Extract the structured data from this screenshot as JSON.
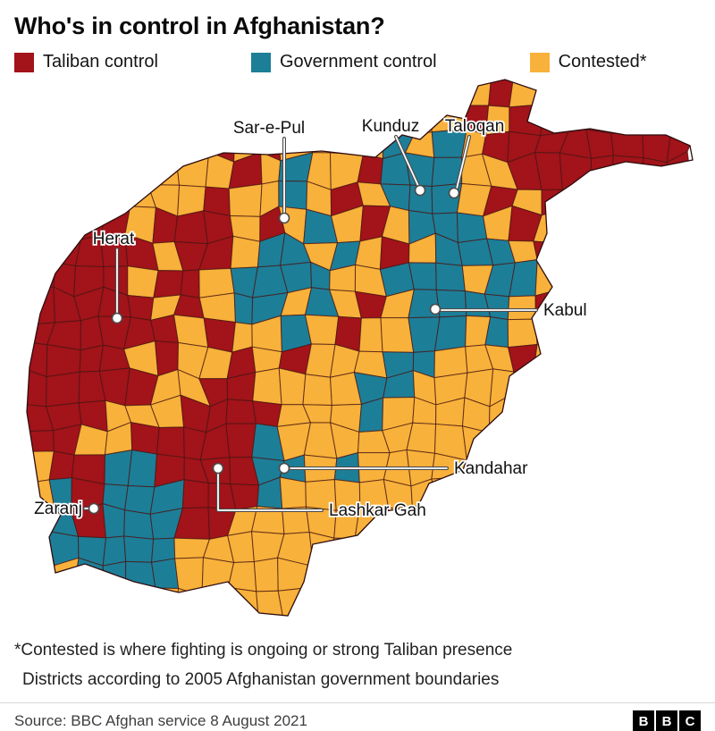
{
  "title": "Who's in control in Afghanistan?",
  "legend": {
    "items": [
      {
        "label": "Taliban control",
        "color": "#a2131a"
      },
      {
        "label": "Government control",
        "color": "#1d7e98"
      },
      {
        "label": "Contested*",
        "color": "#f8b13a"
      }
    ]
  },
  "map": {
    "colors": {
      "R": "#a2131a",
      "B": "#1d7e98",
      "O": "#f8b13a"
    },
    "cities": [
      {
        "name": "Sar-e-Pul"
      },
      {
        "name": "Kunduz"
      },
      {
        "name": "Taloqan"
      },
      {
        "name": "Herat"
      },
      {
        "name": "Kabul"
      },
      {
        "name": "Kandahar"
      },
      {
        "name": "Lashkar Gah"
      },
      {
        "name": "Zaranj"
      }
    ],
    "grid": [
      "OOOOOOOOOOOOOOOOOORORRRRRR",
      "OOOOOOOOOOOOOOROORORRRRRRR",
      "OOOOOOOROROOROBOBORRRRRRRR",
      "OOOOOOOOROBOORBBBOORRRRRRR",
      "OOOOOOOROOBOROBBBORORRRRRR",
      "OORRORRROROBOROBBBOROROOOO",
      "ORRRRORROBBOBOROBBBOROOOOO",
      "RRRRORROBBBBOOBBBOBBOROOOO",
      "RRRRROROBBOBOROBBBBORROOOO",
      "RRRRRROROOBOROOBBOBOOROOOO",
      "RRRROROOROROOOBBOOOROOOOOO",
      "RRRRROORROOOOBBOOOOOOOOOOO",
      "RRROOORRRROOOBOOOOOOOOOOOO",
      "RROORRRRRBOOOOOOOOOOOOOOOO",
      "ORRBBRRRRBBOBOOOOOOOOOOOOO",
      "OBRBBBRRRBOOOOOOOOOOOOOOOO",
      "OBRBBBRROOOOOOOOOOOOOOOOOO",
      "OBBBBBOOOOOOOOOOOOOOOOOOOO",
      "OOBBBBOOOOOOOOOOOOOOOOOOOO",
      "OOOBBOOOOOOOOOOOOOOOOOOOOO"
    ]
  },
  "footnotes": {
    "line1": "*Contested is where fighting is ongoing or strong Taliban presence",
    "line2": "Districts according to 2005 Afghanistan government boundaries"
  },
  "source": "Source: BBC Afghan service 8 August 2021",
  "logo": {
    "letters": [
      "B",
      "B",
      "C"
    ]
  }
}
